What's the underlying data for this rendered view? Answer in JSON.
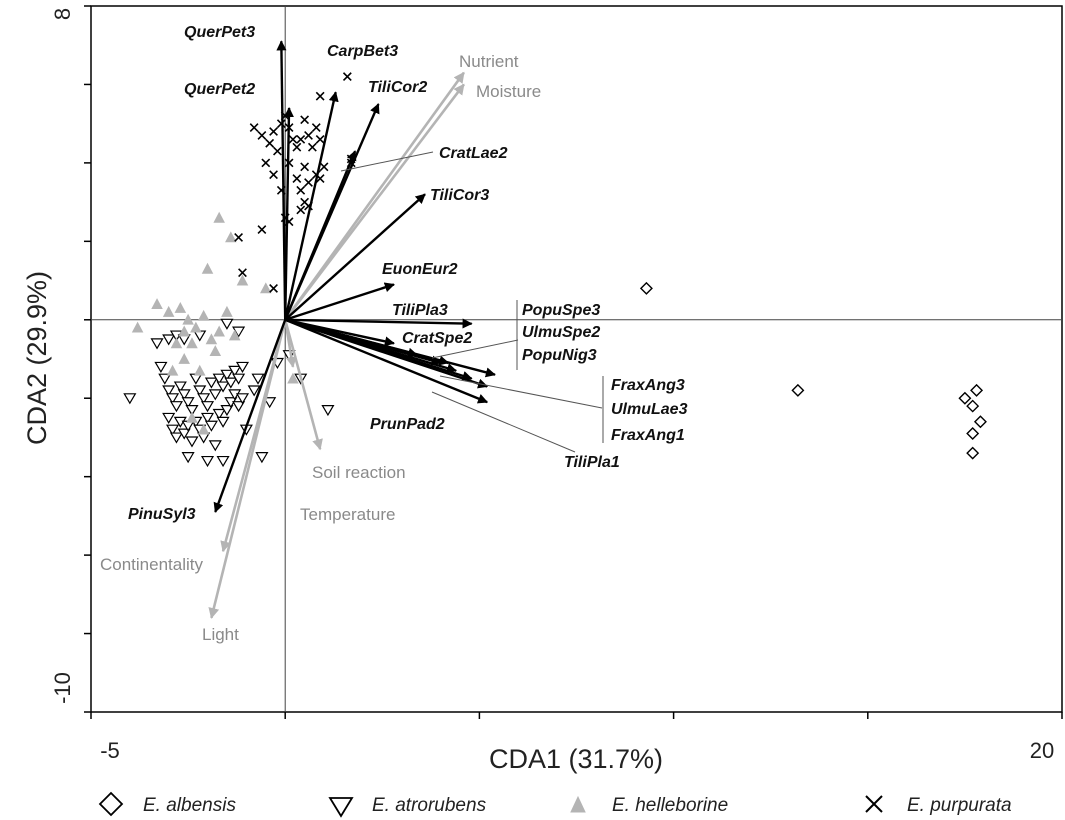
{
  "chart_data": {
    "type": "scatter",
    "title": "",
    "xlabel": "CDA1 (31.7%)",
    "ylabel": "CDA2 (29.9%)",
    "xlim": [
      -5,
      20
    ],
    "ylim": [
      -10,
      8
    ],
    "x_tick_labels": [
      "-5",
      "20"
    ],
    "y_tick_labels": [
      "8",
      "-10"
    ],
    "grid": false,
    "origin_lines": true,
    "legend_position": "bottom",
    "colors": {
      "albensis": "#000000",
      "atrorubens": "#000000",
      "helleborine": "#b4b4b4",
      "purpurata": "#000000",
      "species_arrow": "#000000",
      "env_arrow": "#b4b4b4",
      "env_label": "#8a8a8a"
    },
    "series": [
      {
        "name": "E. albensis",
        "marker": "diamond",
        "points": [
          [
            9.3,
            0.8
          ],
          [
            13.2,
            -1.8
          ],
          [
            17.8,
            -1.8
          ],
          [
            17.5,
            -2.0
          ],
          [
            17.7,
            -2.2
          ],
          [
            17.9,
            -2.6
          ],
          [
            17.7,
            -2.9
          ],
          [
            17.7,
            -3.4
          ]
        ]
      },
      {
        "name": "E. atrorubens",
        "marker": "triangle-down",
        "points": [
          [
            -4.0,
            -2.0
          ],
          [
            -3.3,
            -0.6
          ],
          [
            -3.0,
            -0.5
          ],
          [
            -2.8,
            -0.4
          ],
          [
            -2.6,
            -0.5
          ],
          [
            -2.2,
            -0.4
          ],
          [
            -1.5,
            -0.1
          ],
          [
            -1.2,
            -0.3
          ],
          [
            -3.2,
            -1.2
          ],
          [
            -3.1,
            -1.5
          ],
          [
            -3.0,
            -1.8
          ],
          [
            -2.9,
            -2.0
          ],
          [
            -2.8,
            -2.2
          ],
          [
            -2.7,
            -1.7
          ],
          [
            -2.6,
            -1.9
          ],
          [
            -2.5,
            -2.1
          ],
          [
            -2.4,
            -2.3
          ],
          [
            -2.3,
            -1.5
          ],
          [
            -2.2,
            -1.8
          ],
          [
            -2.1,
            -2.0
          ],
          [
            -2.0,
            -2.2
          ],
          [
            -1.9,
            -1.6
          ],
          [
            -1.8,
            -1.9
          ],
          [
            -1.7,
            -1.5
          ],
          [
            -1.6,
            -1.7
          ],
          [
            -1.5,
            -1.4
          ],
          [
            -1.4,
            -1.6
          ],
          [
            -1.3,
            -1.3
          ],
          [
            -1.2,
            -1.5
          ],
          [
            -1.1,
            -1.2
          ],
          [
            -3.0,
            -2.5
          ],
          [
            -2.9,
            -2.8
          ],
          [
            -2.8,
            -3.0
          ],
          [
            -2.7,
            -2.6
          ],
          [
            -2.6,
            -2.9
          ],
          [
            -2.5,
            -2.7
          ],
          [
            -2.4,
            -3.1
          ],
          [
            -2.3,
            -2.6
          ],
          [
            -2.2,
            -2.8
          ],
          [
            -2.1,
            -3.0
          ],
          [
            -2.0,
            -2.5
          ],
          [
            -1.9,
            -2.7
          ],
          [
            -1.8,
            -3.2
          ],
          [
            -1.7,
            -2.4
          ],
          [
            -1.6,
            -2.6
          ],
          [
            -1.5,
            -2.3
          ],
          [
            -1.4,
            -2.1
          ],
          [
            -1.3,
            -1.9
          ],
          [
            -1.2,
            -2.2
          ],
          [
            -1.1,
            -2.0
          ],
          [
            -0.7,
            -1.5
          ],
          [
            -0.6,
            -3.5
          ],
          [
            -0.4,
            -2.1
          ],
          [
            -0.2,
            -1.1
          ],
          [
            0.1,
            -0.9
          ],
          [
            0.4,
            -1.5
          ],
          [
            1.1,
            -2.3
          ],
          [
            -2.5,
            -3.5
          ],
          [
            -2.0,
            -3.6
          ],
          [
            -1.6,
            -3.6
          ],
          [
            -0.8,
            -1.8
          ],
          [
            -1.0,
            -2.8
          ]
        ]
      },
      {
        "name": "E. helleborine",
        "marker": "triangle-up",
        "points": [
          [
            -3.8,
            -0.2
          ],
          [
            -3.3,
            0.4
          ],
          [
            -3.0,
            0.2
          ],
          [
            -2.7,
            0.3
          ],
          [
            -2.5,
            0.0
          ],
          [
            -2.3,
            -0.2
          ],
          [
            -2.1,
            0.1
          ],
          [
            -1.9,
            -0.5
          ],
          [
            -1.7,
            -0.3
          ],
          [
            -1.5,
            0.2
          ],
          [
            -1.3,
            -0.4
          ],
          [
            -2.0,
            1.3
          ],
          [
            -1.7,
            2.6
          ],
          [
            -1.4,
            2.1
          ],
          [
            -1.1,
            1.0
          ],
          [
            -2.6,
            -1.0
          ],
          [
            -2.2,
            -1.3
          ],
          [
            -2.9,
            -1.3
          ],
          [
            -2.4,
            -0.6
          ],
          [
            -1.8,
            -0.8
          ],
          [
            -2.4,
            -2.5
          ],
          [
            -2.1,
            -2.8
          ],
          [
            -0.5,
            0.8
          ],
          [
            0.2,
            -1.5
          ],
          [
            -2.6,
            -0.3
          ],
          [
            -2.8,
            -0.6
          ]
        ]
      },
      {
        "name": "E. purpurata",
        "marker": "x",
        "points": [
          [
            0.9,
            5.7
          ],
          [
            1.6,
            6.2
          ],
          [
            0.0,
            5.2
          ],
          [
            0.4,
            4.6
          ],
          [
            -0.8,
            4.9
          ],
          [
            -0.6,
            4.7
          ],
          [
            -0.4,
            4.5
          ],
          [
            -0.3,
            4.8
          ],
          [
            -0.2,
            4.3
          ],
          [
            -0.1,
            5.0
          ],
          [
            0.1,
            4.9
          ],
          [
            0.2,
            4.6
          ],
          [
            0.3,
            4.4
          ],
          [
            0.5,
            5.1
          ],
          [
            0.6,
            4.7
          ],
          [
            0.7,
            4.4
          ],
          [
            0.8,
            4.9
          ],
          [
            0.9,
            4.6
          ],
          [
            -0.5,
            4.0
          ],
          [
            -0.3,
            3.7
          ],
          [
            0.1,
            4.0
          ],
          [
            0.3,
            3.6
          ],
          [
            0.5,
            3.9
          ],
          [
            0.6,
            3.5
          ],
          [
            0.8,
            3.7
          ],
          [
            0.9,
            3.6
          ],
          [
            1.0,
            3.9
          ],
          [
            1.7,
            4.1
          ],
          [
            1.7,
            4.0
          ],
          [
            0.4,
            3.3
          ],
          [
            -0.1,
            3.3
          ],
          [
            0.5,
            3.0
          ],
          [
            0.6,
            2.9
          ],
          [
            0.4,
            2.8
          ],
          [
            0.1,
            2.5
          ],
          [
            -1.2,
            2.1
          ],
          [
            -0.6,
            2.3
          ],
          [
            -1.1,
            1.2
          ],
          [
            -0.3,
            0.8
          ],
          [
            0.0,
            2.6
          ]
        ]
      }
    ],
    "species_vectors": [
      {
        "label": "QuerPet3",
        "end": [
          -0.1,
          7.1
        ]
      },
      {
        "label": "QuerPet2",
        "end": [
          0.1,
          5.4
        ]
      },
      {
        "label": "CarpBet3",
        "end": [
          1.3,
          5.8
        ]
      },
      {
        "label": "TiliCor2",
        "end": [
          2.4,
          5.5
        ]
      },
      {
        "label": "CratLae2",
        "end": [
          1.8,
          4.3
        ]
      },
      {
        "label": "TiliCor3",
        "end": [
          3.6,
          3.2
        ]
      },
      {
        "label": "EuonEur2",
        "end": [
          2.8,
          0.9
        ]
      },
      {
        "label": "TiliPla3",
        "end": [
          4.8,
          -0.1
        ]
      },
      {
        "label": "CratSpe2",
        "end": [
          2.8,
          -0.6
        ]
      },
      {
        "label": "PopuSpe3",
        "end": [
          3.4,
          -0.9
        ]
      },
      {
        "label": "UlmuSpe2",
        "end": [
          4.0,
          -1.1
        ]
      },
      {
        "label": "PopuNig3",
        "end": [
          5.4,
          -1.4
        ]
      },
      {
        "label": "FraxAng3",
        "end": [
          4.4,
          -1.3
        ]
      },
      {
        "label": "UlmuLae3",
        "end": [
          4.8,
          -1.5
        ]
      },
      {
        "label": "FraxAng1",
        "end": [
          5.2,
          -1.7
        ]
      },
      {
        "label": "TiliPla1",
        "end": [
          5.2,
          -2.1
        ]
      },
      {
        "label": "PrunPad2",
        "end": [
          4.2,
          -1.1
        ]
      },
      {
        "label": "PinuSyl3",
        "end": [
          -1.8,
          -4.9
        ]
      }
    ],
    "environmental_vectors": [
      {
        "label": "Nutrient",
        "end": [
          4.6,
          6.3
        ]
      },
      {
        "label": "Moisture",
        "end": [
          4.6,
          6.0
        ]
      },
      {
        "label": "Soil reaction",
        "end": [
          0.9,
          -3.3
        ]
      },
      {
        "label": "Temperature",
        "end": [
          0.2,
          -1.2
        ]
      },
      {
        "label": "Continentality",
        "end": [
          -1.6,
          -5.9
        ]
      },
      {
        "label": "Light",
        "end": [
          -1.9,
          -7.6
        ]
      }
    ]
  }
}
